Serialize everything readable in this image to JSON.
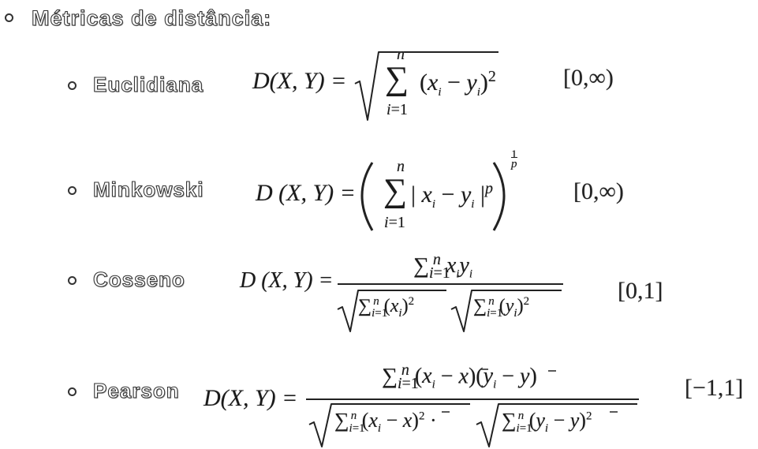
{
  "heading": "Métricas de distância:",
  "metrics": [
    {
      "name": "Euclidiana",
      "range": "[0,∞)"
    },
    {
      "name": "Minkowski",
      "range": "[0,∞)"
    },
    {
      "name": "Cosseno",
      "range": "[0,1]"
    },
    {
      "name": "Pearson",
      "range": "[−1,1]"
    }
  ]
}
